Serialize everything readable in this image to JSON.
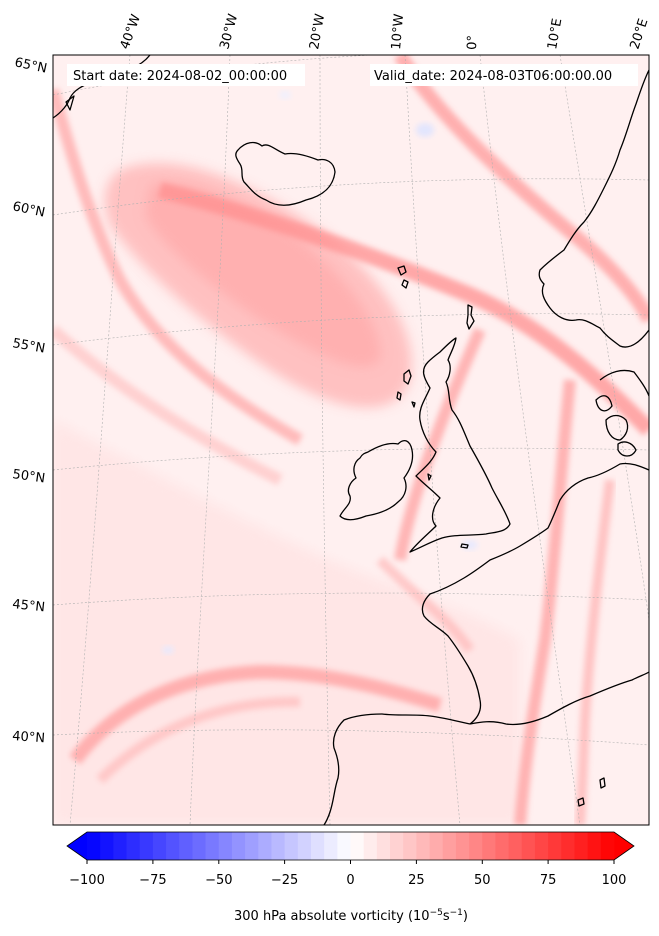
{
  "map": {
    "start_date_label": "Start date: 2024-08-02_00:00:00",
    "valid_date_label": "Valid_date: 2024-08-03T06:00:00.00",
    "longitude_labels": [
      "40°W",
      "30°W",
      "20°W",
      "10°W",
      "0°",
      "10°E",
      "20°E"
    ],
    "latitude_labels": [
      "65°N",
      "60°N",
      "55°N",
      "50°N",
      "45°N",
      "40°N"
    ],
    "variable": "300 hPa absolute vorticity",
    "colors": {
      "coast": "#000000",
      "grid": "#b0b0b0",
      "negative": "#0000ff",
      "zero": "#ffffff",
      "positive": "#ff0000"
    }
  },
  "colorbar": {
    "ticks": [
      "−100",
      "−75",
      "−50",
      "−25",
      "0",
      "25",
      "50",
      "75",
      "100"
    ],
    "range": [
      -100,
      100
    ],
    "levels": 40,
    "extend": "both",
    "label_prefix": "300 hPa absolute vorticity (10",
    "label_exp1": "−5",
    "label_mid": "s",
    "label_exp2": "−1",
    "label_suffix": ")"
  }
}
